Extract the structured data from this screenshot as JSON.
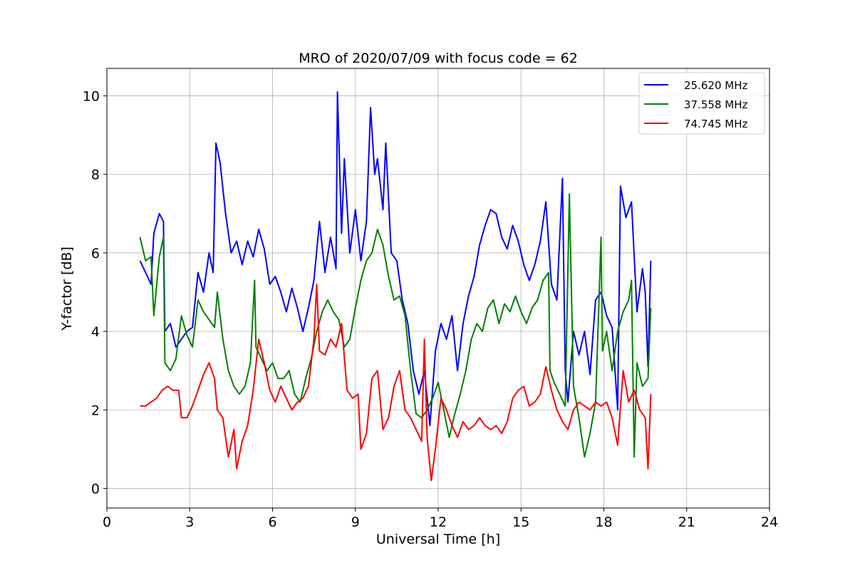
{
  "chart_data": {
    "type": "line",
    "title": "MRO of 2020/07/09 with focus code = 62",
    "xlabel": "Universal Time [h]",
    "ylabel": "Y-factor [dB]",
    "xlim": [
      0,
      24
    ],
    "ylim": [
      -0.5,
      10.7
    ],
    "xticks": [
      0,
      3,
      6,
      9,
      12,
      15,
      18,
      21,
      24
    ],
    "yticks": [
      0,
      2,
      4,
      6,
      8,
      10
    ],
    "grid": true,
    "legend_position": "top-right",
    "series": [
      {
        "name": "25.620 MHz",
        "color": "#0000ff",
        "points": [
          [
            1.2,
            5.8
          ],
          [
            1.4,
            5.5
          ],
          [
            1.6,
            5.2
          ],
          [
            1.7,
            6.5
          ],
          [
            1.9,
            7.0
          ],
          [
            2.05,
            6.8
          ],
          [
            2.1,
            4.0
          ],
          [
            2.3,
            4.2
          ],
          [
            2.5,
            3.6
          ],
          [
            2.7,
            3.8
          ],
          [
            2.9,
            4.0
          ],
          [
            3.1,
            4.1
          ],
          [
            3.3,
            5.5
          ],
          [
            3.5,
            5.0
          ],
          [
            3.7,
            6.0
          ],
          [
            3.85,
            5.5
          ],
          [
            3.95,
            8.8
          ],
          [
            4.1,
            8.3
          ],
          [
            4.3,
            7.0
          ],
          [
            4.5,
            6.0
          ],
          [
            4.7,
            6.3
          ],
          [
            4.9,
            5.7
          ],
          [
            5.1,
            6.3
          ],
          [
            5.3,
            5.9
          ],
          [
            5.5,
            6.6
          ],
          [
            5.7,
            6.1
          ],
          [
            5.9,
            5.2
          ],
          [
            6.1,
            5.4
          ],
          [
            6.3,
            5.0
          ],
          [
            6.5,
            4.5
          ],
          [
            6.7,
            5.1
          ],
          [
            6.9,
            4.6
          ],
          [
            7.1,
            4.0
          ],
          [
            7.3,
            4.6
          ],
          [
            7.5,
            5.3
          ],
          [
            7.7,
            6.8
          ],
          [
            7.9,
            5.5
          ],
          [
            8.1,
            6.4
          ],
          [
            8.3,
            5.6
          ],
          [
            8.35,
            10.1
          ],
          [
            8.5,
            6.5
          ],
          [
            8.6,
            8.4
          ],
          [
            8.8,
            6.0
          ],
          [
            9.0,
            7.1
          ],
          [
            9.2,
            5.8
          ],
          [
            9.4,
            6.8
          ],
          [
            9.55,
            9.7
          ],
          [
            9.7,
            8.0
          ],
          [
            9.8,
            8.4
          ],
          [
            10.0,
            7.1
          ],
          [
            10.1,
            8.8
          ],
          [
            10.3,
            6.0
          ],
          [
            10.5,
            5.8
          ],
          [
            10.7,
            4.8
          ],
          [
            10.9,
            4.2
          ],
          [
            11.1,
            3.0
          ],
          [
            11.3,
            2.4
          ],
          [
            11.5,
            3.0
          ],
          [
            11.7,
            1.6
          ],
          [
            11.9,
            3.5
          ],
          [
            12.1,
            4.2
          ],
          [
            12.3,
            3.8
          ],
          [
            12.5,
            4.4
          ],
          [
            12.7,
            3.0
          ],
          [
            12.9,
            4.2
          ],
          [
            13.1,
            4.9
          ],
          [
            13.3,
            5.4
          ],
          [
            13.5,
            6.2
          ],
          [
            13.7,
            6.7
          ],
          [
            13.9,
            7.1
          ],
          [
            14.1,
            7.0
          ],
          [
            14.3,
            6.4
          ],
          [
            14.5,
            6.1
          ],
          [
            14.7,
            6.7
          ],
          [
            14.9,
            6.3
          ],
          [
            15.1,
            5.7
          ],
          [
            15.3,
            5.3
          ],
          [
            15.5,
            5.7
          ],
          [
            15.7,
            6.3
          ],
          [
            15.9,
            7.3
          ],
          [
            16.1,
            5.2
          ],
          [
            16.3,
            4.8
          ],
          [
            16.5,
            7.9
          ],
          [
            16.6,
            3.0
          ],
          [
            16.7,
            2.2
          ],
          [
            16.9,
            4.0
          ],
          [
            17.1,
            3.4
          ],
          [
            17.3,
            4.0
          ],
          [
            17.5,
            2.9
          ],
          [
            17.7,
            4.8
          ],
          [
            17.9,
            5.0
          ],
          [
            18.1,
            4.4
          ],
          [
            18.3,
            4.1
          ],
          [
            18.5,
            2.0
          ],
          [
            18.6,
            7.7
          ],
          [
            18.8,
            6.9
          ],
          [
            19.0,
            7.3
          ],
          [
            19.2,
            4.5
          ],
          [
            19.4,
            5.6
          ],
          [
            19.5,
            5.0
          ],
          [
            19.6,
            3.1
          ],
          [
            19.7,
            5.8
          ]
        ]
      },
      {
        "name": "37.558 MHz",
        "color": "#008000",
        "points": [
          [
            1.2,
            6.4
          ],
          [
            1.4,
            5.8
          ],
          [
            1.6,
            5.9
          ],
          [
            1.7,
            4.4
          ],
          [
            1.9,
            5.9
          ],
          [
            2.05,
            6.4
          ],
          [
            2.1,
            3.2
          ],
          [
            2.3,
            3.0
          ],
          [
            2.5,
            3.3
          ],
          [
            2.7,
            4.4
          ],
          [
            2.9,
            3.9
          ],
          [
            3.1,
            3.6
          ],
          [
            3.3,
            4.8
          ],
          [
            3.5,
            4.5
          ],
          [
            3.7,
            4.3
          ],
          [
            3.9,
            4.1
          ],
          [
            4.0,
            5.0
          ],
          [
            4.2,
            3.8
          ],
          [
            4.4,
            3.0
          ],
          [
            4.6,
            2.6
          ],
          [
            4.8,
            2.4
          ],
          [
            5.0,
            2.6
          ],
          [
            5.2,
            3.2
          ],
          [
            5.35,
            5.3
          ],
          [
            5.4,
            3.6
          ],
          [
            5.6,
            3.3
          ],
          [
            5.8,
            3.0
          ],
          [
            6.0,
            3.2
          ],
          [
            6.2,
            2.8
          ],
          [
            6.4,
            2.8
          ],
          [
            6.6,
            3.0
          ],
          [
            6.8,
            2.4
          ],
          [
            7.0,
            2.2
          ],
          [
            7.2,
            2.8
          ],
          [
            7.4,
            3.3
          ],
          [
            7.6,
            4.0
          ],
          [
            7.8,
            4.5
          ],
          [
            8.0,
            4.8
          ],
          [
            8.2,
            4.5
          ],
          [
            8.4,
            4.3
          ],
          [
            8.6,
            3.6
          ],
          [
            8.8,
            3.8
          ],
          [
            9.0,
            4.6
          ],
          [
            9.2,
            5.3
          ],
          [
            9.4,
            5.8
          ],
          [
            9.6,
            6.0
          ],
          [
            9.8,
            6.6
          ],
          [
            10.0,
            6.2
          ],
          [
            10.2,
            5.4
          ],
          [
            10.4,
            4.8
          ],
          [
            10.6,
            4.9
          ],
          [
            10.8,
            4.4
          ],
          [
            11.0,
            3.0
          ],
          [
            11.2,
            1.9
          ],
          [
            11.4,
            1.8
          ],
          [
            11.6,
            2.0
          ],
          [
            11.8,
            2.3
          ],
          [
            12.0,
            2.7
          ],
          [
            12.2,
            2.0
          ],
          [
            12.4,
            1.3
          ],
          [
            12.6,
            1.9
          ],
          [
            12.8,
            2.4
          ],
          [
            13.0,
            3.0
          ],
          [
            13.2,
            3.8
          ],
          [
            13.4,
            4.2
          ],
          [
            13.6,
            4.0
          ],
          [
            13.8,
            4.6
          ],
          [
            14.0,
            4.8
          ],
          [
            14.2,
            4.2
          ],
          [
            14.4,
            4.7
          ],
          [
            14.6,
            4.5
          ],
          [
            14.8,
            4.9
          ],
          [
            15.0,
            4.5
          ],
          [
            15.2,
            4.2
          ],
          [
            15.4,
            4.6
          ],
          [
            15.6,
            4.8
          ],
          [
            15.8,
            5.3
          ],
          [
            16.0,
            5.5
          ],
          [
            16.05,
            3.0
          ],
          [
            16.2,
            2.7
          ],
          [
            16.4,
            2.4
          ],
          [
            16.6,
            2.1
          ],
          [
            16.75,
            7.5
          ],
          [
            16.9,
            2.6
          ],
          [
            17.1,
            1.8
          ],
          [
            17.3,
            0.8
          ],
          [
            17.5,
            1.4
          ],
          [
            17.7,
            2.2
          ],
          [
            17.9,
            6.4
          ],
          [
            17.95,
            3.5
          ],
          [
            18.1,
            4.0
          ],
          [
            18.3,
            3.0
          ],
          [
            18.5,
            4.0
          ],
          [
            18.7,
            4.5
          ],
          [
            18.9,
            4.8
          ],
          [
            19.0,
            5.3
          ],
          [
            19.1,
            0.8
          ],
          [
            19.2,
            3.2
          ],
          [
            19.4,
            2.6
          ],
          [
            19.6,
            2.8
          ],
          [
            19.7,
            4.6
          ]
        ]
      },
      {
        "name": "74.745 MHz",
        "color": "#ff0000",
        "points": [
          [
            1.2,
            2.1
          ],
          [
            1.4,
            2.1
          ],
          [
            1.6,
            2.2
          ],
          [
            1.8,
            2.3
          ],
          [
            2.0,
            2.5
          ],
          [
            2.2,
            2.6
          ],
          [
            2.4,
            2.5
          ],
          [
            2.6,
            2.5
          ],
          [
            2.7,
            1.8
          ],
          [
            2.9,
            1.8
          ],
          [
            3.1,
            2.1
          ],
          [
            3.3,
            2.5
          ],
          [
            3.5,
            2.9
          ],
          [
            3.7,
            3.2
          ],
          [
            3.9,
            2.8
          ],
          [
            4.0,
            2.0
          ],
          [
            4.2,
            1.8
          ],
          [
            4.4,
            0.8
          ],
          [
            4.6,
            1.5
          ],
          [
            4.7,
            0.5
          ],
          [
            4.9,
            1.2
          ],
          [
            5.1,
            1.6
          ],
          [
            5.3,
            2.5
          ],
          [
            5.5,
            3.8
          ],
          [
            5.7,
            3.2
          ],
          [
            5.9,
            2.5
          ],
          [
            6.1,
            2.2
          ],
          [
            6.3,
            2.6
          ],
          [
            6.5,
            2.3
          ],
          [
            6.7,
            2.0
          ],
          [
            6.9,
            2.2
          ],
          [
            7.1,
            2.3
          ],
          [
            7.3,
            2.6
          ],
          [
            7.5,
            3.8
          ],
          [
            7.6,
            5.2
          ],
          [
            7.7,
            3.5
          ],
          [
            7.9,
            3.4
          ],
          [
            8.1,
            3.8
          ],
          [
            8.3,
            3.6
          ],
          [
            8.5,
            4.2
          ],
          [
            8.7,
            2.5
          ],
          [
            8.9,
            2.3
          ],
          [
            9.1,
            2.4
          ],
          [
            9.2,
            1.0
          ],
          [
            9.4,
            1.4
          ],
          [
            9.6,
            2.8
          ],
          [
            9.8,
            3.0
          ],
          [
            10.0,
            1.5
          ],
          [
            10.2,
            1.8
          ],
          [
            10.4,
            2.6
          ],
          [
            10.6,
            3.0
          ],
          [
            10.8,
            2.0
          ],
          [
            11.0,
            1.8
          ],
          [
            11.2,
            1.5
          ],
          [
            11.4,
            1.2
          ],
          [
            11.5,
            3.8
          ],
          [
            11.6,
            1.3
          ],
          [
            11.75,
            0.2
          ],
          [
            11.9,
            1.0
          ],
          [
            12.1,
            2.3
          ],
          [
            12.3,
            2.0
          ],
          [
            12.5,
            1.6
          ],
          [
            12.7,
            1.3
          ],
          [
            12.9,
            1.7
          ],
          [
            13.1,
            1.5
          ],
          [
            13.3,
            1.6
          ],
          [
            13.5,
            1.8
          ],
          [
            13.7,
            1.6
          ],
          [
            13.9,
            1.5
          ],
          [
            14.1,
            1.6
          ],
          [
            14.3,
            1.4
          ],
          [
            14.5,
            1.7
          ],
          [
            14.7,
            2.3
          ],
          [
            14.9,
            2.5
          ],
          [
            15.1,
            2.6
          ],
          [
            15.3,
            2.1
          ],
          [
            15.5,
            2.2
          ],
          [
            15.7,
            2.4
          ],
          [
            15.9,
            3.1
          ],
          [
            16.1,
            2.5
          ],
          [
            16.3,
            2.0
          ],
          [
            16.5,
            1.7
          ],
          [
            16.7,
            1.5
          ],
          [
            16.9,
            2.0
          ],
          [
            17.1,
            2.2
          ],
          [
            17.3,
            2.1
          ],
          [
            17.5,
            2.0
          ],
          [
            17.7,
            2.2
          ],
          [
            17.9,
            2.1
          ],
          [
            18.1,
            2.2
          ],
          [
            18.3,
            1.8
          ],
          [
            18.5,
            1.1
          ],
          [
            18.7,
            3.0
          ],
          [
            18.9,
            2.2
          ],
          [
            19.1,
            2.5
          ],
          [
            19.3,
            2.0
          ],
          [
            19.5,
            1.8
          ],
          [
            19.6,
            0.5
          ],
          [
            19.7,
            2.4
          ]
        ]
      }
    ]
  }
}
